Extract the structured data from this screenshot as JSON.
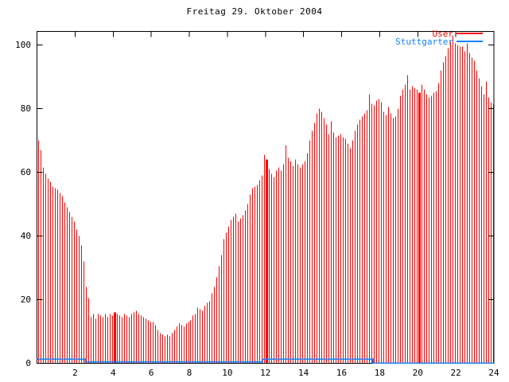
{
  "title": "Freitag 29. Oktober 2004",
  "legend": {
    "position": "top-right",
    "entries": [
      {
        "label": "User",
        "color": "#ff0000"
      },
      {
        "label": "Stuttgarter",
        "color": "#1080ff"
      }
    ]
  },
  "axes": {
    "y_tick_labels": [
      "0",
      "20",
      "40",
      "60",
      "80",
      "100"
    ],
    "x_tick_labels": [
      "2",
      "4",
      "6",
      "8",
      "10",
      "12",
      "14",
      "16",
      "18",
      "20",
      "22",
      "24"
    ]
  },
  "colors": {
    "bars": "#ff0000",
    "line": "#1080ff",
    "frame": "#000000",
    "background": "#ffffff"
  },
  "chart_data": {
    "type": "bar",
    "title": "Freitag 29. Oktober 2004",
    "xlabel": "",
    "ylabel": "",
    "x_unit": "hour of day",
    "x_range": [
      0,
      24
    ],
    "y_range": [
      0,
      104
    ],
    "x_ticks": [
      2,
      4,
      6,
      8,
      10,
      12,
      14,
      16,
      18,
      20,
      22,
      24
    ],
    "y_ticks": [
      0,
      20,
      40,
      60,
      80,
      100
    ],
    "grid": false,
    "legend_position": "top-right",
    "series": [
      {
        "name": "User",
        "color": "#ff0000",
        "style": "impulses",
        "x_start": 0.0625,
        "x_step": 0.125,
        "values": [
          70,
          67,
          61.5,
          59.5,
          58,
          57,
          55.5,
          55,
          54.5,
          53.5,
          52.5,
          50.5,
          49,
          47.5,
          46,
          44.5,
          42,
          40,
          37,
          32,
          24,
          20.5,
          14.5,
          15.5,
          14,
          15.5,
          15,
          14.5,
          15.5,
          14.5,
          15.5,
          15,
          16,
          15.5,
          15,
          14.5,
          15.5,
          15,
          14.5,
          15.5,
          16,
          16.5,
          15.5,
          15,
          14.5,
          14,
          13.5,
          13,
          13,
          12,
          10.5,
          9.5,
          9,
          8.5,
          9,
          8.5,
          9.5,
          10.5,
          11.5,
          12.5,
          12,
          11.5,
          12.5,
          13,
          13.5,
          15,
          15.5,
          17.5,
          17,
          16.5,
          18,
          19,
          19.5,
          22,
          24,
          27,
          30.5,
          34,
          39,
          41,
          43,
          45,
          46,
          47,
          44.5,
          45.5,
          46.5,
          48,
          50,
          53,
          55,
          55.5,
          56,
          57.5,
          59,
          65.5,
          64,
          61,
          59.5,
          58.5,
          60.5,
          61.5,
          60.5,
          62.5,
          68.5,
          64.5,
          63.5,
          62,
          64,
          62.5,
          61.5,
          62.5,
          63.5,
          66,
          70,
          73,
          75.5,
          78.5,
          80,
          79,
          77,
          75,
          72,
          76,
          72.5,
          71,
          71.5,
          72,
          71,
          70.5,
          69,
          67.5,
          70,
          73,
          75,
          76.5,
          77.5,
          78.5,
          79.5,
          84.5,
          81.5,
          81,
          82.5,
          83,
          82,
          79,
          78,
          80.5,
          78.5,
          77,
          77.5,
          80,
          84,
          86,
          87.5,
          90.5,
          86,
          87,
          86.5,
          86,
          85,
          87.5,
          86,
          84.5,
          83.5,
          84,
          85,
          85.5,
          88,
          92,
          94.5,
          96.5,
          99,
          101,
          103,
          100.5,
          100,
          99.5,
          99.5,
          98,
          100.5,
          97.5,
          96,
          95,
          92,
          89.5,
          87,
          84.5,
          88.5,
          83.5,
          82,
          81.5
        ],
        "wide_bar_indices": [
          32,
          96,
          160
        ]
      },
      {
        "name": "Stuttgarter",
        "color": "#1080ff",
        "style": "steps",
        "segments": [
          {
            "from": 0,
            "to": 2.53,
            "value": 1.3
          },
          {
            "from": 2.53,
            "to": 11.85,
            "value": 0.4
          },
          {
            "from": 11.85,
            "to": 17.65,
            "value": 1.3
          },
          {
            "from": 17.65,
            "to": 24,
            "value": 0.1
          }
        ]
      }
    ]
  }
}
